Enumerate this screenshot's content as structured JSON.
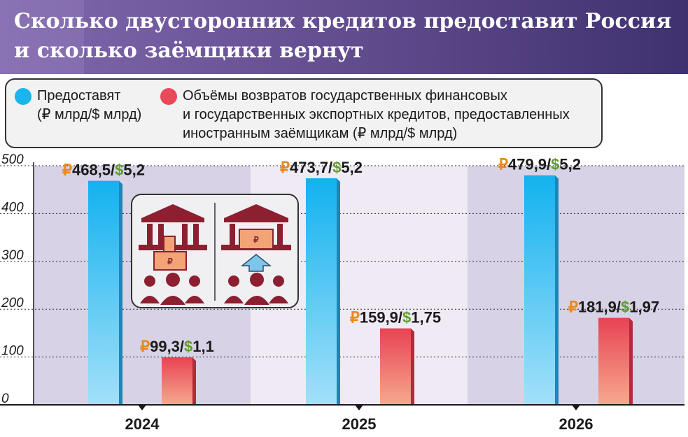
{
  "header": {
    "title_line1": "Сколько двусторонних кредитов предоставит Россия",
    "title_line2": "и сколько заёмщики вернут"
  },
  "legend": {
    "items": [
      {
        "line1": "Предоставят",
        "line2": "(₽ млрд/$ млрд)",
        "color": "#1ab4ee"
      },
      {
        "line1": "Объёмы возвратов государственных финансовых",
        "line2": "и государственных экспортных кредитов, предоставленных",
        "line3": "иностранным заёмщикам (₽ млрд/$ млрд)",
        "color": "#e84a5a"
      }
    ]
  },
  "icons": [
    "bank-lend-icon",
    "bank-return-icon"
  ],
  "chart_data": {
    "type": "bar",
    "categories": [
      "2024",
      "2025",
      "2026"
    ],
    "series": [
      {
        "color": "#1ab4ee",
        "values": [
          468.5,
          473.7,
          479.9
        ],
        "labels_rub": [
          "468,5",
          "473,7",
          "479,9"
        ],
        "labels_usd": [
          "5,2",
          "5,2",
          "5,2"
        ]
      },
      {
        "color": "#e84a5a",
        "values": [
          99.3,
          159.9,
          181.9
        ],
        "labels_rub": [
          "99,3",
          "159,9",
          "181,9"
        ],
        "labels_usd": [
          "1,1",
          "1,75",
          "1,97"
        ]
      }
    ],
    "yticks": [
      "0",
      "100",
      "200",
      "300",
      "400",
      "500"
    ],
    "ylim": [
      0,
      500
    ],
    "currency": {
      "rub": "₽",
      "usd": "$",
      "sep": "/",
      "rub_color": "#e8891a",
      "usd_color": "#5f9d2c"
    }
  }
}
